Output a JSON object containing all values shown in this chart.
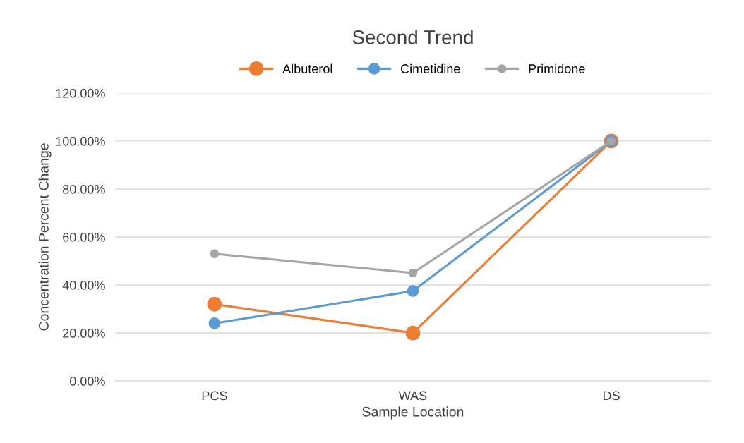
{
  "chart_data": {
    "type": "line",
    "title": "Second Trend",
    "xlabel": "Sample Location",
    "ylabel": "Concentration Percent Change",
    "categories": [
      "PCS",
      "WAS",
      "DS"
    ],
    "series": [
      {
        "name": "Albuterol",
        "color": "#ed7d31",
        "values": [
          32,
          20,
          100
        ]
      },
      {
        "name": "Cimetidine",
        "color": "#5b9bd5",
        "values": [
          24,
          37.5,
          100
        ]
      },
      {
        "name": "Primidone",
        "color": "#a5a5a5",
        "values": [
          53,
          45,
          100
        ]
      }
    ],
    "ylim": [
      0,
      120
    ],
    "yticks": [
      {
        "value": 0,
        "label": "0.00%"
      },
      {
        "value": 20,
        "label": "20.00%"
      },
      {
        "value": 40,
        "label": "40.00%"
      },
      {
        "value": 60,
        "label": "60.00%"
      },
      {
        "value": 80,
        "label": "80.00%"
      },
      {
        "value": 100,
        "label": "100.00%"
      },
      {
        "value": 120,
        "label": "120.00%"
      }
    ],
    "grid": "y",
    "legend": "top",
    "marker": "circle",
    "line_style": "solid"
  }
}
